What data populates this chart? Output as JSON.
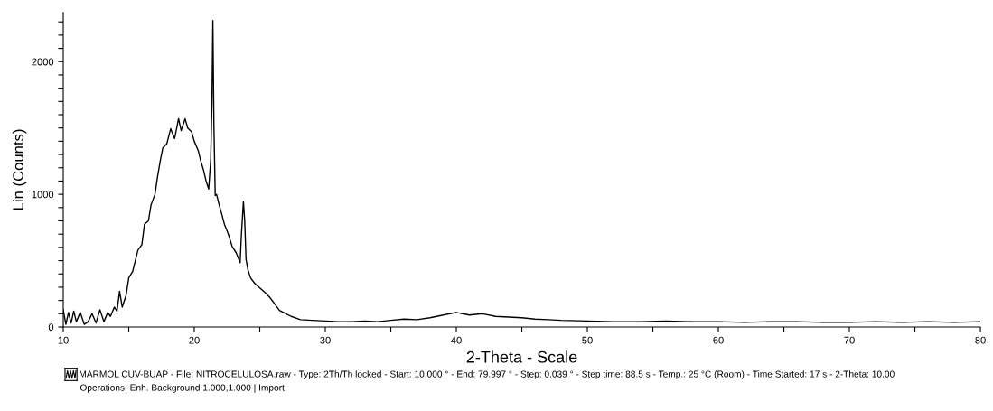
{
  "chart_data": {
    "type": "line",
    "xlabel": "2-Theta - Scale",
    "ylabel": "Lin (Counts)",
    "xlim": [
      10,
      80
    ],
    "ylim": [
      0,
      2370
    ],
    "xticks": [
      10,
      {
        "value": 15,
        "label": null
      },
      20,
      {
        "value": 25,
        "label": null
      },
      30,
      {
        "value": 35,
        "label": null
      },
      40,
      {
        "value": 45,
        "label": null
      },
      50,
      {
        "value": 55,
        "label": null
      },
      60,
      {
        "value": 65,
        "label": null
      },
      70,
      {
        "value": 75,
        "label": null
      },
      80
    ],
    "yticks": [
      0,
      {
        "value": 100,
        "label": null
      },
      {
        "value": 200,
        "label": null
      },
      {
        "value": 300,
        "label": null
      },
      {
        "value": 400,
        "label": null
      },
      {
        "value": 500,
        "label": null
      },
      {
        "value": 600,
        "label": null
      },
      {
        "value": 700,
        "label": null
      },
      {
        "value": 800,
        "label": null
      },
      {
        "value": 900,
        "label": null
      },
      1000,
      {
        "value": 1100,
        "label": null
      },
      {
        "value": 1200,
        "label": null
      },
      {
        "value": 1300,
        "label": null
      },
      {
        "value": 1400,
        "label": null
      },
      {
        "value": 1500,
        "label": null
      },
      {
        "value": 1600,
        "label": null
      },
      {
        "value": 1700,
        "label": null
      },
      {
        "value": 1800,
        "label": null
      },
      {
        "value": 1900,
        "label": null
      },
      2000,
      {
        "value": 2100,
        "label": null
      },
      {
        "value": 2200,
        "label": null
      },
      {
        "value": 2300,
        "label": null
      }
    ],
    "grid": false,
    "legend": false,
    "marker": "none",
    "line_style": "solid",
    "series": [
      {
        "color": "#000000",
        "x": [
          10.0,
          10.2,
          10.4,
          10.6,
          10.8,
          11.0,
          11.3,
          11.6,
          11.9,
          12.2,
          12.5,
          12.8,
          13.1,
          13.4,
          13.6,
          13.9,
          14.1,
          14.3,
          14.5,
          14.8,
          15.0,
          15.3,
          15.7,
          16.0,
          16.2,
          16.5,
          16.7,
          17.0,
          17.2,
          17.4,
          17.6,
          17.9,
          18.2,
          18.5,
          18.8,
          19.0,
          19.3,
          19.5,
          19.8,
          20.0,
          20.3,
          20.5,
          20.7,
          20.9,
          21.1,
          21.25,
          21.35,
          21.42,
          21.5,
          21.6,
          21.7,
          21.9,
          22.1,
          22.3,
          22.6,
          22.9,
          23.2,
          23.5,
          23.6,
          23.75,
          23.85,
          23.95,
          24.1,
          24.3,
          24.6,
          25.0,
          25.4,
          25.75,
          26.1,
          26.5,
          27.0,
          27.4,
          28.1,
          29.0,
          30.0,
          31.0,
          32.0,
          33.0,
          34.0,
          35.0,
          36.0,
          37.0,
          38.0,
          39.0,
          40.0,
          41.0,
          42.0,
          43.0,
          44.0,
          45.0,
          46.0,
          47.0,
          48.0,
          50.0,
          52.0,
          54.0,
          56.0,
          58.0,
          60.0,
          62.0,
          64.0,
          66.0,
          68.0,
          70.0,
          72.0,
          74.0,
          76.0,
          78.0,
          80.0
        ],
        "values": [
          130,
          20,
          110,
          30,
          120,
          40,
          110,
          20,
          40,
          100,
          30,
          130,
          40,
          110,
          80,
          150,
          120,
          270,
          150,
          240,
          370,
          420,
          580,
          620,
          775,
          800,
          920,
          1000,
          1135,
          1250,
          1350,
          1380,
          1495,
          1420,
          1570,
          1480,
          1570,
          1500,
          1470,
          1400,
          1330,
          1250,
          1185,
          1100,
          1040,
          1250,
          1700,
          2310,
          1520,
          990,
          1000,
          920,
          850,
          775,
          700,
          605,
          560,
          485,
          700,
          945,
          800,
          510,
          430,
          370,
          330,
          295,
          260,
          225,
          180,
          125,
          100,
          80,
          55,
          50,
          45,
          40,
          40,
          45,
          40,
          50,
          60,
          55,
          70,
          90,
          110,
          90,
          100,
          80,
          75,
          70,
          60,
          55,
          50,
          45,
          40,
          40,
          45,
          40,
          40,
          35,
          40,
          40,
          35,
          35,
          40,
          35,
          40,
          35,
          40
        ]
      }
    ],
    "annotations": [
      "MARMOL CUV-BUAP - File: NITROCELULOSA.raw - Type: 2Th/Th locked - Start: 10.000 ° - End: 79.997 ° - Step: 0.039 ° - Step time: 88.5 s - Temp.: 25 °C (Room) - Time Started: 17 s - 2-Theta: 10.00",
      "Operations: Enh. Background 1.000,1.000 | Import"
    ]
  }
}
